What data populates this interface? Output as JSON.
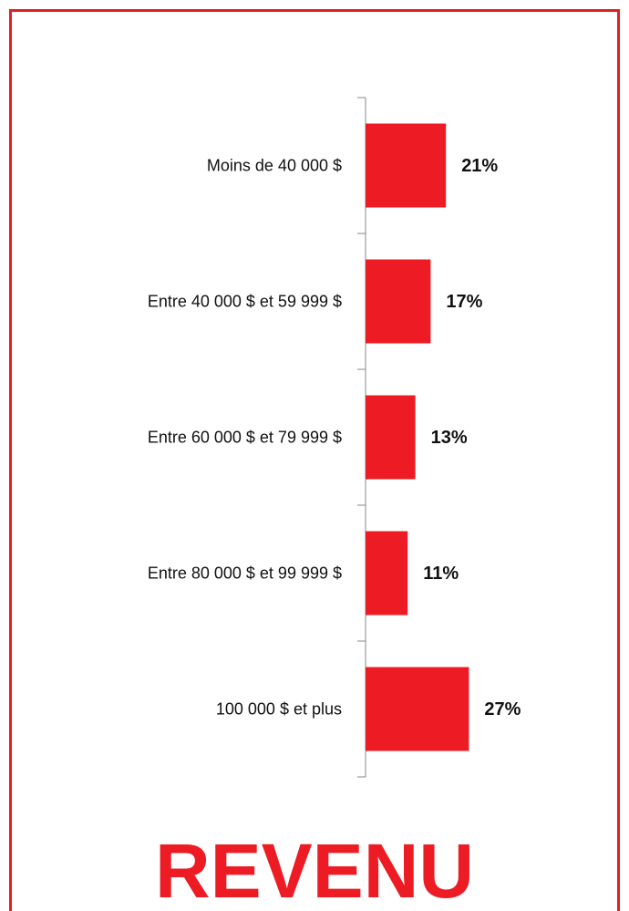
{
  "chart_data": {
    "type": "bar",
    "orientation": "horizontal",
    "title": "REVENU",
    "categories": [
      "Moins de 40 000 $",
      "Entre 40 000 $ et 59 999 $",
      "Entre 60 000 $ et 79 999 $",
      "Entre 80 000 $ et 99 999 $",
      "100 000 $ et plus"
    ],
    "values": [
      21,
      17,
      13,
      11,
      27
    ],
    "value_labels": [
      "21%",
      "17%",
      "13%",
      "11%",
      "27%"
    ],
    "color": "#ed1c24"
  }
}
